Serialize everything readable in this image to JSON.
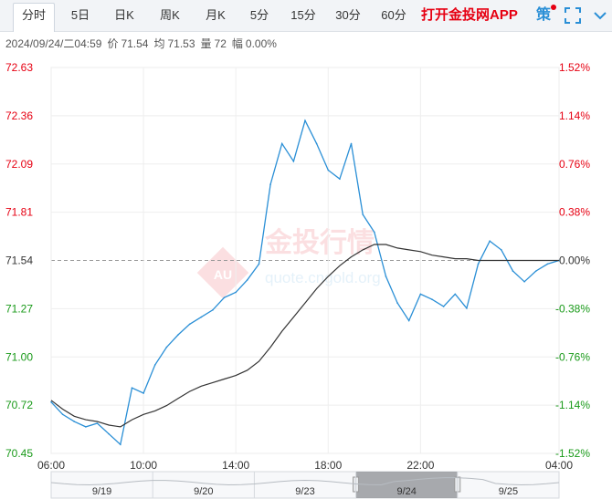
{
  "tabs": [
    {
      "id": "fenshi",
      "label": "分时",
      "active": true
    },
    {
      "id": "5ri",
      "label": "5日",
      "active": false
    },
    {
      "id": "rik",
      "label": "日K",
      "active": false
    },
    {
      "id": "zhouk",
      "label": "周K",
      "active": false
    },
    {
      "id": "yuek",
      "label": "月K",
      "active": false
    },
    {
      "id": "5fen",
      "label": "5分",
      "active": false
    },
    {
      "id": "15fen",
      "label": "15分",
      "active": false
    },
    {
      "id": "30fen",
      "label": "30分",
      "active": false
    },
    {
      "id": "60fen",
      "label": "60分",
      "active": false
    }
  ],
  "app_link": "打开金投网APP",
  "toolbar": {
    "strategy_label": "策",
    "strategy_icon": "strategy-icon",
    "fullscreen_icon": "fullscreen-icon",
    "collapse_icon": "chevron-down-icon"
  },
  "info": {
    "datetime": "2024/09/24/二04:59",
    "price_label": "价",
    "price": "71.54",
    "avg_label": "均",
    "avg": "71.53",
    "volume_label": "量",
    "volume": "72",
    "change_label": "幅",
    "change": "0.00%"
  },
  "watermark": {
    "brand": "金投行情",
    "badge": "AU",
    "url": "quote.cngold.org"
  },
  "colors": {
    "price_line": "#2a8fd6",
    "avg_line": "#333333",
    "up": "#e60012",
    "down": "#1a9a1a",
    "axis_text": "#555555",
    "grid": "#eeeeee",
    "ref_line": "#999999"
  },
  "chart_data": {
    "type": "line",
    "title": "",
    "xlabel": "",
    "ylabel": "",
    "reference_price": 71.54,
    "ylim": [
      70.45,
      72.63
    ],
    "x_ticks": [
      "06:00",
      "10:00",
      "14:00",
      "18:00",
      "22:00",
      "04:00"
    ],
    "y_ticks_left": [
      "72.63",
      "72.36",
      "72.09",
      "71.81",
      "71.54",
      "71.27",
      "71.00",
      "70.72",
      "70.45"
    ],
    "y_ticks_right": [
      "1.52%",
      "1.14%",
      "0.76%",
      "0.38%",
      "0.00%",
      "-0.38%",
      "-0.76%",
      "-1.14%",
      "-1.52%"
    ],
    "x": [
      "06:00",
      "06:30",
      "07:00",
      "07:30",
      "08:00",
      "08:30",
      "09:00",
      "09:30",
      "10:00",
      "10:30",
      "11:00",
      "11:30",
      "12:00",
      "12:30",
      "13:00",
      "13:30",
      "14:00",
      "14:30",
      "15:00",
      "15:30",
      "16:00",
      "16:30",
      "17:00",
      "17:30",
      "18:00",
      "18:30",
      "19:00",
      "19:30",
      "20:00",
      "20:30",
      "21:00",
      "21:30",
      "22:00",
      "22:30",
      "23:00",
      "23:30",
      "00:00",
      "00:30",
      "01:00",
      "01:30",
      "02:00",
      "02:30",
      "03:00",
      "03:30",
      "04:00"
    ],
    "series": [
      {
        "name": "",
        "values": [
          70.74,
          70.67,
          70.63,
          70.6,
          70.62,
          70.56,
          70.5,
          70.82,
          70.79,
          70.95,
          71.05,
          71.12,
          71.18,
          71.22,
          71.26,
          71.33,
          71.36,
          71.43,
          71.52,
          71.97,
          72.2,
          72.1,
          72.33,
          72.2,
          72.05,
          72.0,
          72.2,
          71.8,
          71.7,
          71.45,
          71.3,
          71.2,
          71.35,
          71.32,
          71.28,
          71.35,
          71.27,
          71.52,
          71.65,
          71.6,
          71.48,
          71.42,
          71.48,
          71.52,
          71.54
        ]
      },
      {
        "name": "",
        "values": [
          70.75,
          70.7,
          70.66,
          70.64,
          70.63,
          70.61,
          70.6,
          70.64,
          70.67,
          70.69,
          70.72,
          70.76,
          70.8,
          70.83,
          70.85,
          70.87,
          70.89,
          70.92,
          70.97,
          71.05,
          71.14,
          71.22,
          71.3,
          71.38,
          71.45,
          71.51,
          71.56,
          71.6,
          71.63,
          71.63,
          71.61,
          71.6,
          71.59,
          71.57,
          71.56,
          71.55,
          71.55,
          71.54,
          71.54,
          71.54,
          71.54,
          71.54,
          71.54,
          71.54,
          71.54
        ]
      }
    ],
    "navigator": {
      "labels": [
        "9/19",
        "9/20",
        "9/23",
        "9/24",
        "9/25"
      ],
      "selected": "9/24"
    }
  }
}
